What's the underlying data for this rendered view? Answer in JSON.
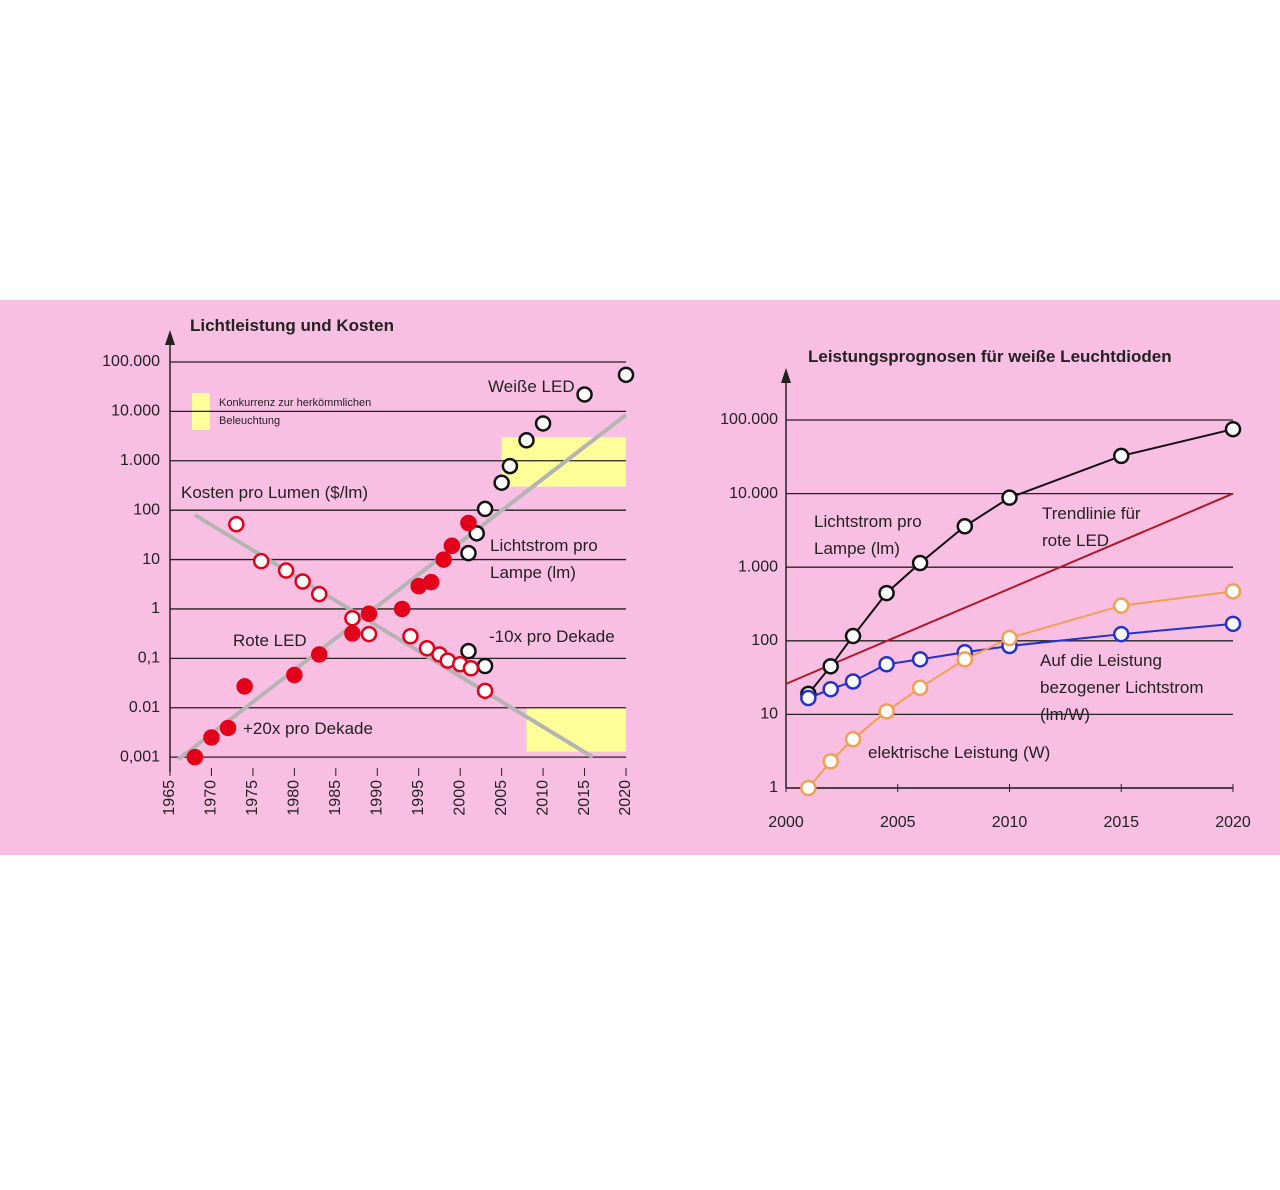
{
  "chart_data": [
    {
      "type": "scatter",
      "title": "Lichtleistung und Kosten",
      "xlim": [
        1965,
        2020
      ],
      "xticks": [
        1965,
        1970,
        1975,
        1980,
        1985,
        1990,
        1995,
        2000,
        2005,
        2010,
        2015,
        2020
      ],
      "ylim": [
        0.0005,
        100000
      ],
      "log_y": true,
      "grid": true,
      "yticks": [
        {
          "value": 100000,
          "label": "100.000"
        },
        {
          "value": 10000,
          "label": "10.000"
        },
        {
          "value": 1000,
          "label": "1.000"
        },
        100,
        10,
        1,
        {
          "value": 0.1,
          "label": "0,1"
        },
        0.01,
        {
          "value": 0.001,
          "label": "0,001"
        }
      ],
      "series": [
        {
          "name": "Weiße LED",
          "color": "#111111",
          "marker": "open",
          "x": [
            2001,
            2002,
            2003,
            2005,
            2006,
            2008,
            2010,
            2015,
            2020
          ],
          "values": [
            13.5,
            34,
            106,
            360,
            780,
            2600,
            5700,
            22000,
            55000
          ]
        },
        {
          "color": "#111111",
          "marker": "open",
          "x": [
            2001,
            2003
          ],
          "values": [
            0.14,
            0.07
          ]
        },
        {
          "name": "Rote LED",
          "color": "#e3001b",
          "marker": "filled",
          "x": [
            1968,
            1970,
            1972,
            1974,
            1980,
            1983,
            1987,
            1989,
            1993,
            1995,
            1996.5,
            1998,
            1999,
            2001
          ],
          "values": [
            0.001,
            0.0025,
            0.0039,
            0.027,
            0.046,
            0.12,
            0.32,
            0.8,
            1,
            2.9,
            3.5,
            10,
            19,
            55
          ]
        },
        {
          "name": "Kosten pro Lumen ($/lm)",
          "color": "#e3001b",
          "marker": "open",
          "x": [
            1973,
            1976,
            1979,
            1981,
            1983,
            1987,
            1989,
            1994,
            1996,
            1997.5,
            1998.5,
            2000,
            2001.3,
            2003
          ],
          "values": [
            52,
            9.3,
            6,
            3.6,
            2,
            0.65,
            0.31,
            0.28,
            0.16,
            0.12,
            0.09,
            0.076,
            0.063,
            0.022
          ]
        },
        {
          "name": "+20x pro Dekade",
          "color": "#b4b4b4",
          "marker": "none",
          "x": [
            1966,
            2020
          ],
          "values": [
            0.0009,
            8500
          ]
        },
        {
          "name": "-10x pro Dekade",
          "color": "#b4b4b4",
          "marker": "none",
          "x": [
            1968,
            2016
          ],
          "values": [
            80,
            0.001
          ]
        }
      ],
      "annotations": [
        "Lichtstrom pro Lampe (lm)"
      ],
      "regions": [
        {
          "x": [
            2005,
            2020
          ],
          "y": [
            300,
            3000
          ]
        },
        {
          "x": [
            2008,
            2020
          ],
          "y": [
            0.0013,
            0.01
          ]
        }
      ],
      "region_color": "#ffff99",
      "region_label": "Konkurrenz zur herkömmlichen Beleuchtung"
    },
    {
      "type": "line",
      "title": "Leistungsprognosen für weiße Leuchtdioden",
      "xlim": [
        2000,
        2020
      ],
      "xticks": [
        2000,
        2005,
        2010,
        2015,
        2020
      ],
      "ylim": [
        1,
        100000
      ],
      "log_y": true,
      "grid": true,
      "yticks": [
        {
          "value": 100000,
          "label": "100.000"
        },
        {
          "value": 10000,
          "label": "10.000"
        },
        {
          "value": 1000,
          "label": "1.000"
        },
        100,
        10,
        1
      ],
      "series": [
        {
          "name": "Trendlinie für rote LED",
          "color": "#b0182a",
          "marker": "none",
          "x": [
            2000,
            2020
          ],
          "values": [
            26,
            10000
          ]
        },
        {
          "name": "Lichtstrom pro Lampe (lm)",
          "color": "#111111",
          "marker": "open",
          "x": [
            2001,
            2002,
            2003,
            2004.5,
            2006,
            2008,
            2010,
            2015,
            2020
          ],
          "values": [
            19,
            45,
            116,
            445,
            1140,
            3600,
            8800,
            32500,
            75000
          ]
        },
        {
          "name": "Auf die Leistung bezogener Lichtstrom (lm/W)",
          "color": "#2233cc",
          "marker": "open",
          "x": [
            2001,
            2002,
            2003,
            2004.5,
            2006,
            2008,
            2010,
            2015,
            2020
          ],
          "values": [
            16.7,
            22,
            28,
            48,
            56,
            70,
            85,
            123,
            170
          ]
        },
        {
          "name": "elektrische Leistung (W)",
          "color": "#f0a050",
          "marker": "open",
          "x": [
            2001,
            2002,
            2003,
            2004.5,
            2006,
            2008,
            2010,
            2015,
            2020
          ],
          "values": [
            1,
            2.3,
            4.6,
            11,
            23,
            56,
            109,
            300,
            470
          ]
        }
      ]
    }
  ]
}
